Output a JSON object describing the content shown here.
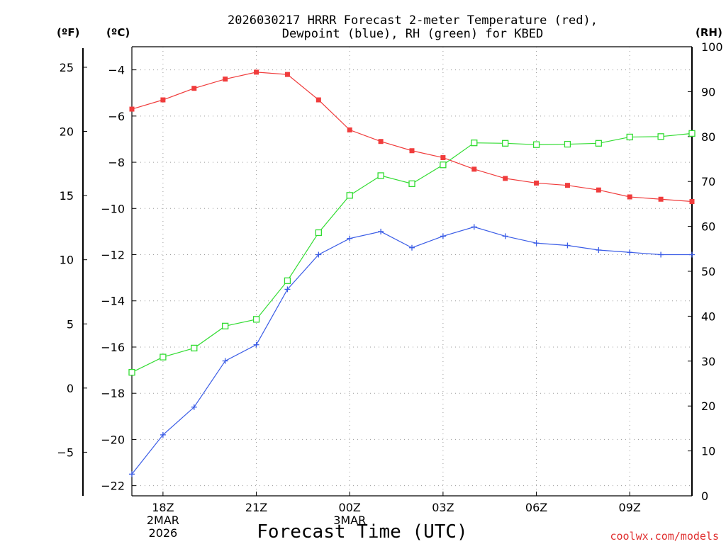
{
  "chart_data": {
    "type": "line",
    "title": [
      "2026030217 HRRR Forecast 2-meter Temperature (red),",
      "Dewpoint (blue), RH (green) for KBED"
    ],
    "xlabel": "Forecast Time (UTC)",
    "credit": "coolwx.com/models",
    "x": [
      17,
      18,
      19,
      20,
      21,
      22,
      23,
      24,
      25,
      26,
      27,
      28,
      29,
      30,
      31,
      32,
      33,
      34,
      35
    ],
    "xlim": [
      17,
      35
    ],
    "x_ticks": [
      {
        "x": 18,
        "lines": [
          "18Z",
          "2MAR",
          "2026"
        ]
      },
      {
        "x": 21,
        "lines": [
          "21Z"
        ]
      },
      {
        "x": 24,
        "lines": [
          "00Z",
          "3MAR"
        ]
      },
      {
        "x": 27,
        "lines": [
          "03Z"
        ]
      },
      {
        "x": 30,
        "lines": [
          "06Z"
        ]
      },
      {
        "x": 33,
        "lines": [
          "09Z"
        ]
      }
    ],
    "axes": {
      "fahrenheit": {
        "unit_label": "(ºF)",
        "range": [
          -8.4,
          26.6
        ],
        "ticks": [
          25,
          20,
          15,
          10,
          5,
          0,
          -5
        ],
        "tick_labels": [
          "25",
          "20",
          "15",
          "10",
          "5",
          "0",
          "−5"
        ]
      },
      "celsius": {
        "unit_label": "(ºC)",
        "range": [
          -22.44,
          -3.0
        ],
        "ticks": [
          -4,
          -6,
          -8,
          -10,
          -12,
          -14,
          -16,
          -18,
          -20,
          -22
        ],
        "tick_labels": [
          "−4",
          "−6",
          "−8",
          "−10",
          "−12",
          "−14",
          "−16",
          "−18",
          "−20",
          "−22"
        ]
      },
      "rh": {
        "unit_label": "(RH)",
        "range": [
          0,
          100
        ],
        "ticks": [
          100,
          90,
          80,
          70,
          60,
          50,
          40,
          30,
          20,
          10,
          0
        ],
        "tick_labels": [
          "100",
          "90",
          "80",
          "70",
          "60",
          "50",
          "40",
          "30",
          "20",
          "10",
          "0"
        ]
      }
    },
    "grid": true,
    "series": [
      {
        "name": "2-meter Temperature",
        "axis": "celsius",
        "color": "#f03c3c",
        "marker": "filled-square",
        "values": [
          -5.7,
          -5.3,
          -4.8,
          -4.4,
          -4.1,
          -4.2,
          -5.3,
          -6.6,
          -7.1,
          -7.5,
          -7.8,
          -8.3,
          -8.7,
          -8.9,
          -9.0,
          -9.2,
          -9.5,
          -9.6,
          -9.7
        ]
      },
      {
        "name": "Dewpoint",
        "axis": "celsius",
        "color": "#3a5ce6",
        "marker": "plus",
        "values": [
          -21.5,
          -19.8,
          -18.6,
          -16.6,
          -15.9,
          -13.5,
          -12.0,
          -11.3,
          -11.0,
          -11.7,
          -11.2,
          -10.8,
          -11.2,
          -11.5,
          -11.6,
          -11.8,
          -11.9,
          -12.0,
          -12.0
        ]
      },
      {
        "name": "Relative Humidity",
        "axis": "rh",
        "color": "#32dc32",
        "marker": "open-square",
        "values": [
          27.5,
          30.9,
          32.9,
          37.8,
          39.3,
          47.9,
          58.6,
          66.9,
          71.3,
          69.5,
          73.7,
          78.6,
          78.5,
          78.2,
          78.3,
          78.5,
          79.9,
          80.0,
          80.7
        ]
      }
    ]
  }
}
